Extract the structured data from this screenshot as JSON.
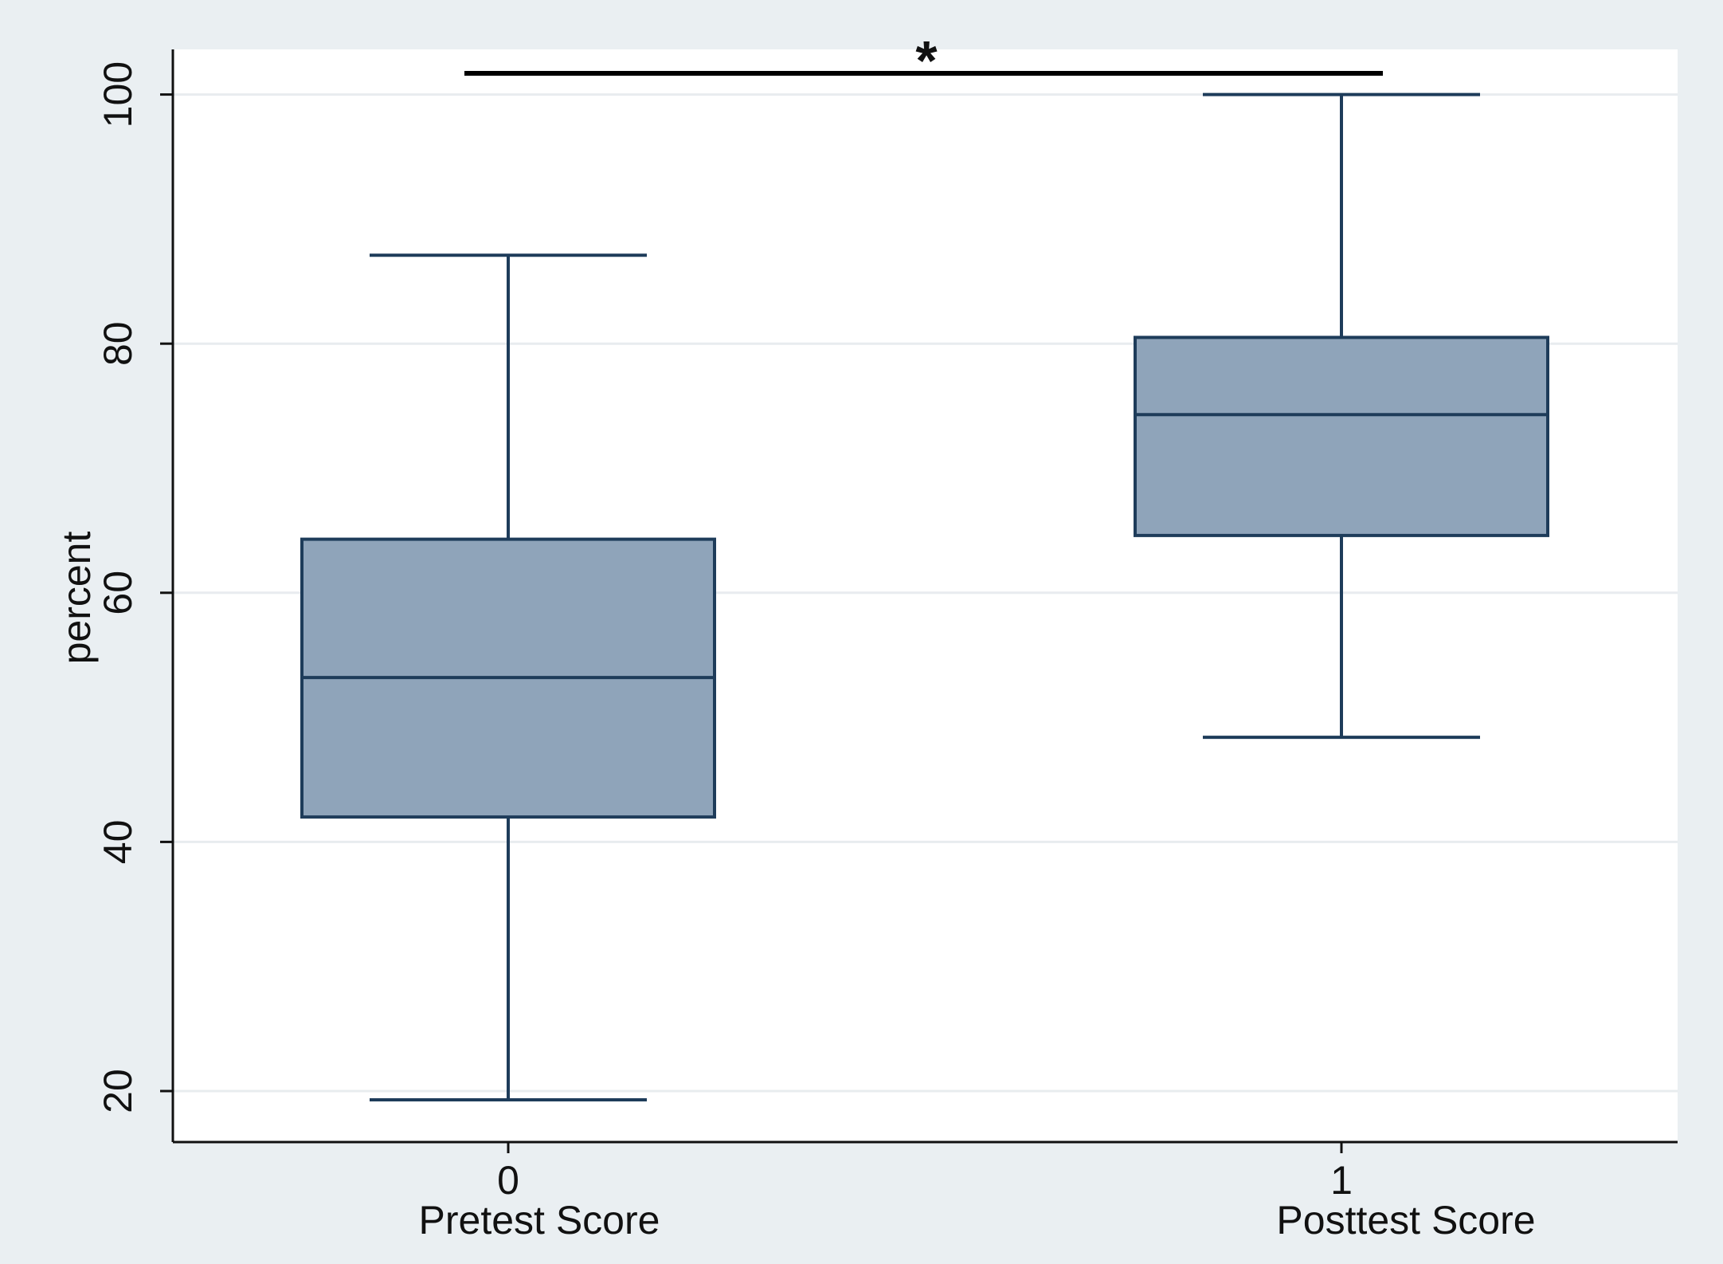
{
  "chart_data": {
    "type": "box",
    "title": "",
    "xlabel": "",
    "ylabel": "percent",
    "ylim": [
      16,
      105
    ],
    "yticks": [
      20,
      40,
      60,
      80,
      100
    ],
    "grid": true,
    "legend": "none",
    "categories": [
      {
        "tick": "0",
        "label": "Pretest Score"
      },
      {
        "tick": "1",
        "label": "Posttest Score"
      }
    ],
    "boxes": [
      {
        "category": "Pretest Score",
        "whisker_low": 19.3,
        "q1": 42.0,
        "median": 53.2,
        "q3": 64.3,
        "whisker_high": 87.1
      },
      {
        "category": "Posttest Score",
        "whisker_low": 48.4,
        "q1": 64.6,
        "median": 74.3,
        "q3": 80.5,
        "whisker_high": 100.0
      }
    ],
    "annotation": {
      "text": "*",
      "from_category": "Pretest Score",
      "to_category": "Posttest Score"
    },
    "colors": {
      "box_fill": "#8fa4ba",
      "box_stroke": "#1e3c5a",
      "whisker": "#1e3c5a",
      "grid": "#e8ecef",
      "plot_bg": "#ffffff",
      "outer_bg": "#eaeff2",
      "annotation": "#000000"
    }
  }
}
